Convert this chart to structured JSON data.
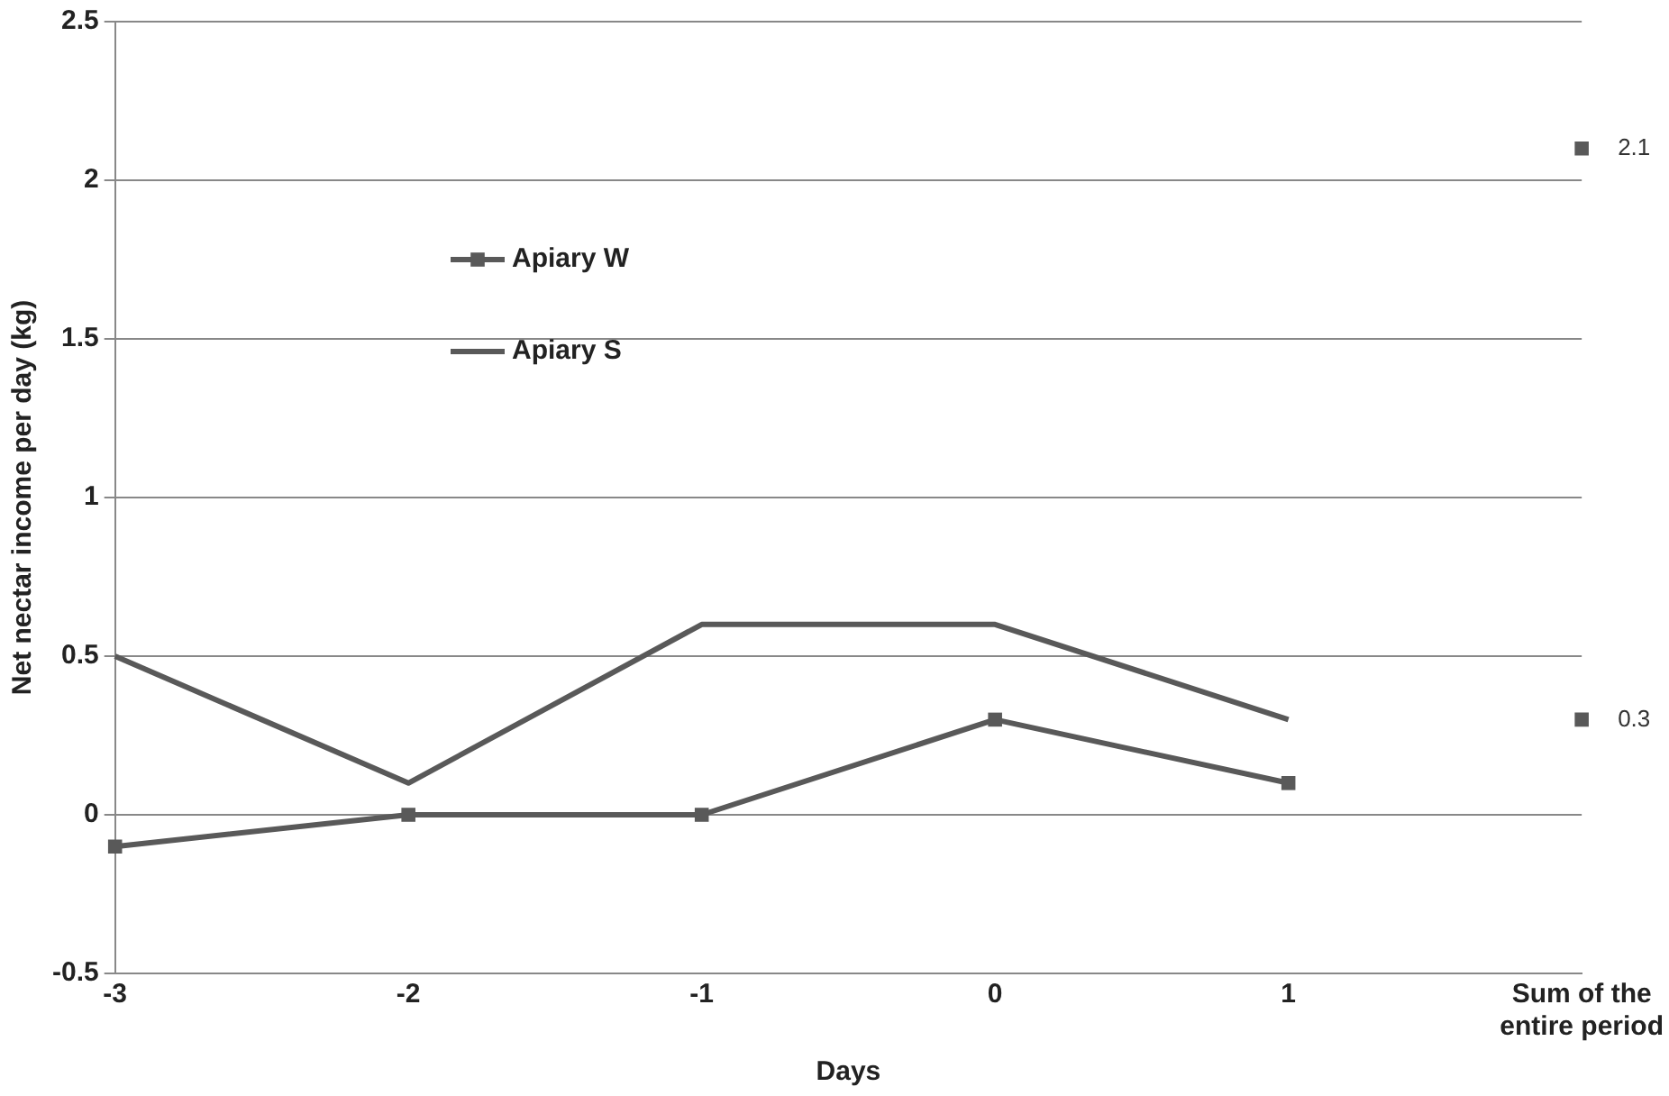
{
  "chart_data": {
    "type": "line",
    "ylabel": "Net nectar income per day (kg)",
    "xlabel": "Days",
    "categories": [
      "-3",
      "-2",
      "-1",
      "0",
      "1",
      "Sum of the entire period"
    ],
    "series": [
      {
        "name": "Apiary W",
        "color": "#595959",
        "marker": "square",
        "values": [
          -0.1,
          0,
          0,
          0.3,
          0.1,
          null
        ]
      },
      {
        "name": "Apiary S",
        "color": "#595959",
        "marker": "none",
        "values": [
          0.5,
          0.1,
          0.6,
          0.6,
          0.3,
          null
        ]
      },
      {
        "color": "#595959",
        "marker": "square",
        "values": [
          null,
          null,
          null,
          null,
          null,
          2.1
        ],
        "value_labels": [
          null,
          null,
          null,
          null,
          null,
          "2.1"
        ]
      },
      {
        "color": "#595959",
        "marker": "square",
        "values": [
          null,
          null,
          null,
          null,
          null,
          0.3
        ],
        "value_labels": [
          null,
          null,
          null,
          null,
          null,
          "0.3"
        ]
      }
    ],
    "ylim": [
      -0.5,
      2.5
    ],
    "yticks": [
      -0.5,
      0,
      0.5,
      1,
      1.5,
      2,
      2.5
    ],
    "grid": "y",
    "legend": "top left",
    "line_style": "solid"
  }
}
